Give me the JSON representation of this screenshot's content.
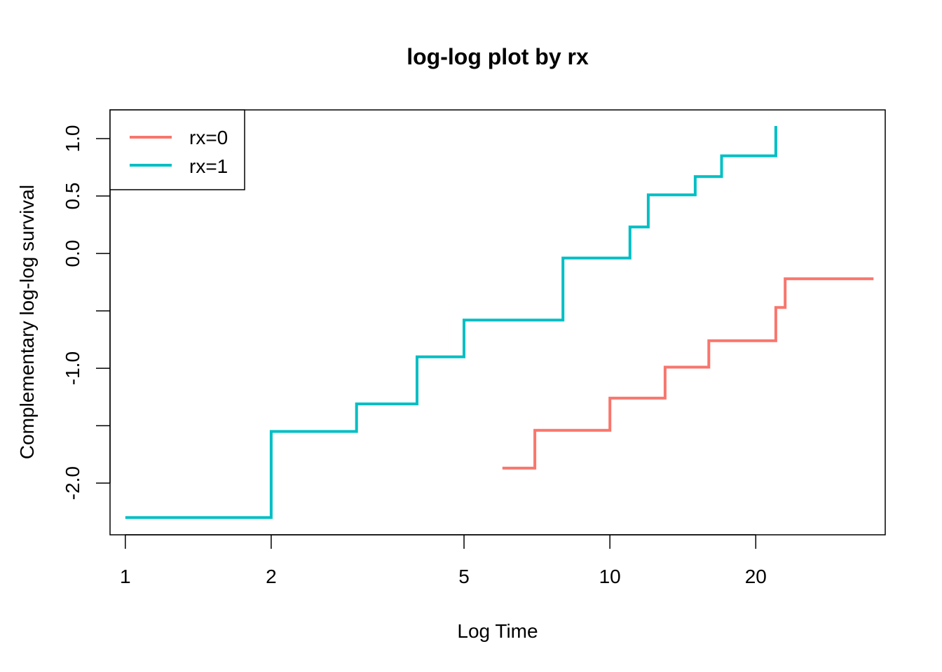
{
  "chart_data": {
    "type": "line",
    "step": true,
    "title": "log-log plot by rx",
    "xlabel": "Log Time",
    "ylabel": "Complementary log-log survival",
    "x_scale": "log",
    "xlim": [
      0.93,
      37
    ],
    "ylim": [
      -2.45,
      1.25
    ],
    "x_ticks": [
      1,
      2,
      5,
      10,
      20
    ],
    "x_tick_labels": [
      "1",
      "2",
      "5",
      "10",
      "20"
    ],
    "y_ticks": [
      -2.0,
      -1.5,
      -1.0,
      -0.5,
      0.0,
      0.5,
      1.0
    ],
    "y_tick_labels": [
      "-2.0",
      "",
      "-1.0",
      "",
      "0.0",
      "0.5",
      "1.0"
    ],
    "legend_position": "top-left",
    "series": [
      {
        "name": "rx=0",
        "color": "#F8766D",
        "x": [
          6,
          7,
          10,
          13,
          16,
          22,
          23,
          35
        ],
        "y": [
          -1.87,
          -1.54,
          -1.26,
          -0.99,
          -0.76,
          -0.47,
          -0.22,
          -0.22
        ]
      },
      {
        "name": "rx=1",
        "color": "#00BFC4",
        "x": [
          1,
          2,
          3,
          4,
          5,
          8,
          11,
          12,
          15,
          17,
          22
        ],
        "y": [
          -2.3,
          -1.55,
          -1.31,
          -0.9,
          -0.58,
          -0.04,
          0.23,
          0.51,
          0.67,
          0.85,
          1.11
        ]
      }
    ]
  }
}
